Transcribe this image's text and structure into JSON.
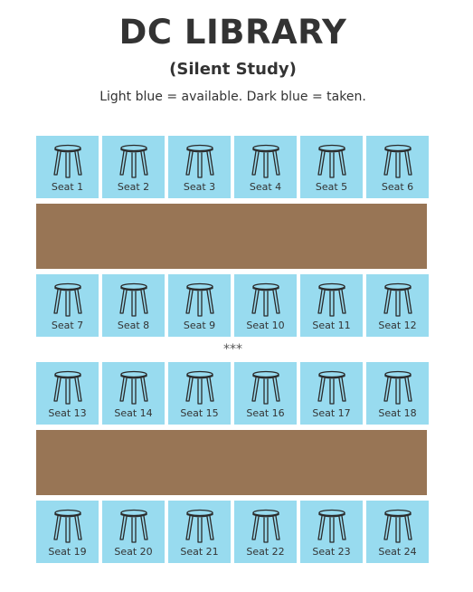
{
  "header": {
    "title": "DC LIBRARY",
    "subtitle": "(Silent Study)",
    "legend": "Light blue = available. Dark blue = taken."
  },
  "separator": "***",
  "colors": {
    "available": "#98dbef",
    "taken": "#1f5fa8",
    "table": "#987555"
  },
  "seats": {
    "row1": [
      {
        "label": "Seat 1",
        "status": "available"
      },
      {
        "label": "Seat 2",
        "status": "available"
      },
      {
        "label": "Seat 3",
        "status": "available"
      },
      {
        "label": "Seat 4",
        "status": "available"
      },
      {
        "label": "Seat 5",
        "status": "available"
      },
      {
        "label": "Seat 6",
        "status": "available"
      }
    ],
    "row2": [
      {
        "label": "Seat 7",
        "status": "available"
      },
      {
        "label": "Seat 8",
        "status": "available"
      },
      {
        "label": "Seat 9",
        "status": "available"
      },
      {
        "label": "Seat 10",
        "status": "available"
      },
      {
        "label": "Seat 11",
        "status": "available"
      },
      {
        "label": "Seat 12",
        "status": "available"
      }
    ],
    "row3": [
      {
        "label": "Seat 13",
        "status": "available"
      },
      {
        "label": "Seat 14",
        "status": "available"
      },
      {
        "label": "Seat 15",
        "status": "available"
      },
      {
        "label": "Seat 16",
        "status": "available"
      },
      {
        "label": "Seat 17",
        "status": "available"
      },
      {
        "label": "Seat 18",
        "status": "available"
      }
    ],
    "row4": [
      {
        "label": "Seat 19",
        "status": "available"
      },
      {
        "label": "Seat 20",
        "status": "available"
      },
      {
        "label": "Seat 21",
        "status": "available"
      },
      {
        "label": "Seat 22",
        "status": "available"
      },
      {
        "label": "Seat 23",
        "status": "available"
      },
      {
        "label": "Seat 24",
        "status": "available"
      }
    ]
  }
}
